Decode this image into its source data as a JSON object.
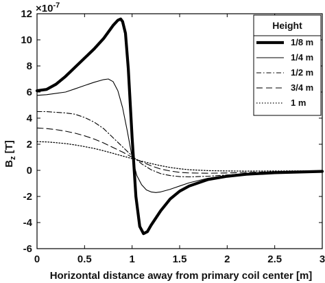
{
  "chart_data": {
    "type": "line",
    "xlabel": "Horizontal distance away from primary coil center [m]",
    "ylabel_main": "B",
    "ylabel_sub": "z",
    "ylabel_unit": "[T]",
    "y_multiplier": "×10",
    "y_multiplier_exp": "-7",
    "xlim": [
      0,
      3
    ],
    "ylim": [
      -6,
      12
    ],
    "x_ticks": [
      0,
      0.5,
      1,
      1.5,
      2,
      2.5,
      3
    ],
    "x_tick_labels": [
      "0",
      "0.5",
      "1",
      "1.5",
      "2",
      "2.5",
      "3"
    ],
    "y_ticks": [
      -6,
      -4,
      -2,
      0,
      2,
      4,
      6,
      8,
      10,
      12
    ],
    "y_tick_labels": [
      "-6",
      "-4",
      "-2",
      "0",
      "2",
      "4",
      "6",
      "8",
      "10",
      "12"
    ],
    "grid": false,
    "legend": {
      "title": "Height",
      "placement": "top-right"
    },
    "series": [
      {
        "name": "1/8 m",
        "style": "solid-thick",
        "x": [
          0,
          0.1,
          0.2,
          0.3,
          0.4,
          0.5,
          0.6,
          0.7,
          0.75,
          0.8,
          0.85,
          0.88,
          0.9,
          0.93,
          0.96,
          1.0,
          1.04,
          1.08,
          1.12,
          1.16,
          1.2,
          1.3,
          1.4,
          1.5,
          1.6,
          1.8,
          2.0,
          2.2,
          2.5,
          3.0
        ],
        "y": [
          6.1,
          6.2,
          6.6,
          7.2,
          7.9,
          8.6,
          9.3,
          10.1,
          10.6,
          11.1,
          11.5,
          11.6,
          11.4,
          10.5,
          7.8,
          2.5,
          -2.0,
          -4.3,
          -4.85,
          -4.7,
          -4.2,
          -3.1,
          -2.2,
          -1.6,
          -1.2,
          -0.7,
          -0.45,
          -0.3,
          -0.18,
          -0.08
        ]
      },
      {
        "name": "1/4 m",
        "style": "solid-thin",
        "x": [
          0,
          0.1,
          0.2,
          0.3,
          0.4,
          0.5,
          0.6,
          0.7,
          0.75,
          0.8,
          0.85,
          0.9,
          0.95,
          1.0,
          1.05,
          1.1,
          1.15,
          1.2,
          1.25,
          1.3,
          1.4,
          1.5,
          1.6,
          1.8,
          2.0,
          2.2,
          2.5,
          3.0
        ],
        "y": [
          5.75,
          5.8,
          5.9,
          6.0,
          6.25,
          6.5,
          6.75,
          6.95,
          7.0,
          6.8,
          6.1,
          4.8,
          3.0,
          1.0,
          -0.4,
          -1.1,
          -1.5,
          -1.65,
          -1.7,
          -1.65,
          -1.45,
          -1.2,
          -0.95,
          -0.6,
          -0.4,
          -0.28,
          -0.16,
          -0.07
        ]
      },
      {
        "name": "1/2 m",
        "style": "dash-dot",
        "x": [
          0,
          0.1,
          0.2,
          0.3,
          0.4,
          0.5,
          0.6,
          0.7,
          0.8,
          0.9,
          1.0,
          1.1,
          1.2,
          1.3,
          1.4,
          1.5,
          1.6,
          1.8,
          2.0,
          2.2,
          2.5,
          3.0
        ],
        "y": [
          4.5,
          4.5,
          4.45,
          4.4,
          4.3,
          4.05,
          3.7,
          3.2,
          2.5,
          1.8,
          1.1,
          0.5,
          0.05,
          -0.25,
          -0.4,
          -0.48,
          -0.5,
          -0.45,
          -0.35,
          -0.25,
          -0.15,
          -0.07
        ]
      },
      {
        "name": "3/4 m",
        "style": "dashed",
        "x": [
          0,
          0.1,
          0.2,
          0.3,
          0.4,
          0.5,
          0.6,
          0.7,
          0.8,
          0.9,
          1.0,
          1.1,
          1.2,
          1.3,
          1.4,
          1.5,
          1.6,
          1.8,
          2.0,
          2.2,
          2.5,
          3.0
        ],
        "y": [
          3.25,
          3.2,
          3.12,
          3.0,
          2.85,
          2.65,
          2.4,
          2.1,
          1.75,
          1.4,
          1.0,
          0.65,
          0.35,
          0.1,
          -0.05,
          -0.15,
          -0.2,
          -0.22,
          -0.2,
          -0.16,
          -0.1,
          -0.05
        ]
      },
      {
        "name": "1 m",
        "style": "dotted",
        "x": [
          0,
          0.1,
          0.2,
          0.3,
          0.4,
          0.5,
          0.6,
          0.7,
          0.8,
          0.9,
          1.0,
          1.1,
          1.2,
          1.3,
          1.4,
          1.5,
          1.6,
          1.8,
          2.0,
          2.2,
          2.5,
          3.0
        ],
        "y": [
          2.2,
          2.18,
          2.12,
          2.05,
          1.95,
          1.82,
          1.68,
          1.5,
          1.3,
          1.1,
          0.9,
          0.7,
          0.52,
          0.36,
          0.22,
          0.12,
          0.05,
          -0.02,
          -0.05,
          -0.06,
          -0.05,
          -0.03
        ]
      }
    ]
  }
}
